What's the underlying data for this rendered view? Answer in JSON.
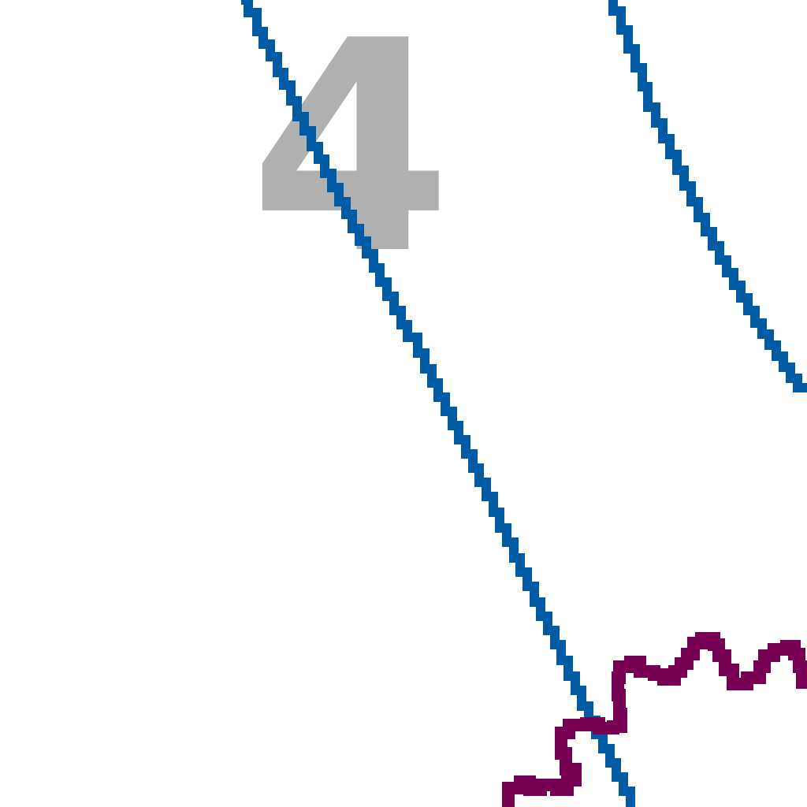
{
  "map": {
    "label": "4",
    "colors": {
      "background": "#ffffff",
      "blue_line": "#005ba5",
      "purple_line": "#770055",
      "label": "#b0b0b0"
    }
  }
}
